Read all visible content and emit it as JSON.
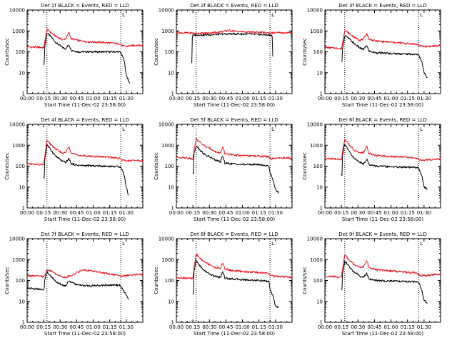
{
  "figure": {
    "background": "#ffffff"
  },
  "colors": {
    "events": "#000000",
    "lld": "#e8141b",
    "axis": "#000000"
  },
  "shared_axes": {
    "xlabel": "Start Time (11-Dec-02 23:58:00)",
    "ylabel": "Counts/sec",
    "xticks": [
      "00:00",
      "00:15",
      "00:30",
      "00:45",
      "01:00",
      "01:15",
      "01:30"
    ],
    "ytick_labels": [
      "1",
      "10",
      "100",
      "1000",
      "10000"
    ],
    "ylim": [
      1,
      10000
    ],
    "xlim_minutes": [
      0,
      105
    ],
    "yscale": "log"
  },
  "chart_data": [
    {
      "type": "line",
      "title": "Det 1f BLACK = Events, RED = LLD",
      "marker": "L",
      "vlines": [
        18,
        85
      ],
      "series": [
        {
          "name": "Events",
          "x": [
            15,
            15.5,
            16,
            18,
            22,
            26,
            32,
            35,
            38,
            40,
            46,
            55,
            70,
            84,
            85,
            88,
            90,
            93
          ],
          "y": [
            25,
            28,
            180,
            800,
            500,
            280,
            160,
            140,
            220,
            120,
            100,
            100,
            100,
            100,
            90,
            40,
            8,
            3
          ]
        },
        {
          "name": "LLD",
          "x": [
            0,
            10,
            15,
            16,
            18,
            22,
            26,
            32,
            35,
            38,
            40,
            46,
            55,
            70,
            84,
            86,
            90,
            93,
            100,
            105
          ],
          "y": [
            170,
            165,
            160,
            300,
            1200,
            800,
            550,
            380,
            420,
            800,
            420,
            350,
            300,
            280,
            240,
            200,
            180,
            190,
            210,
            200
          ]
        }
      ]
    },
    {
      "type": "line",
      "title": "Det 2f BLACK = Events, RED = LLD",
      "marker": "L",
      "vlines": [
        18,
        85
      ],
      "series": [
        {
          "name": "Events",
          "x": [
            14,
            14.5,
            15,
            20,
            30,
            40,
            50,
            60,
            70,
            80,
            85,
            87,
            87.5
          ],
          "y": [
            30,
            600,
            620,
            630,
            650,
            700,
            720,
            710,
            690,
            650,
            620,
            600,
            60
          ]
        },
        {
          "name": "LLD",
          "x": [
            0,
            10,
            15,
            20,
            30,
            40,
            48,
            55,
            65,
            75,
            85,
            95,
            105
          ],
          "y": [
            820,
            800,
            780,
            760,
            800,
            900,
            1050,
            950,
            880,
            850,
            800,
            820,
            810
          ]
        }
      ]
    },
    {
      "type": "line",
      "title": "Det 3f BLACK = Events, RED = LLD",
      "marker": "L",
      "vlines": [
        18,
        85
      ],
      "series": [
        {
          "name": "Events",
          "x": [
            15,
            15.5,
            16,
            18,
            22,
            26,
            32,
            35,
            38,
            40,
            46,
            55,
            70,
            84,
            85,
            88,
            90,
            93
          ],
          "y": [
            30,
            32,
            150,
            600,
            420,
            260,
            150,
            130,
            200,
            110,
            90,
            85,
            80,
            75,
            70,
            35,
            10,
            6
          ]
        },
        {
          "name": "LLD",
          "x": [
            0,
            10,
            15,
            16,
            18,
            22,
            26,
            32,
            35,
            38,
            40,
            46,
            55,
            70,
            84,
            86,
            90,
            100,
            105
          ],
          "y": [
            160,
            150,
            140,
            250,
            1100,
            750,
            520,
            360,
            400,
            750,
            400,
            330,
            300,
            260,
            230,
            190,
            180,
            190,
            200
          ]
        }
      ]
    },
    {
      "type": "line",
      "title": "Det 4f BLACK = Events, RED = LLD",
      "marker": "L",
      "vlines": [
        18,
        85
      ],
      "series": [
        {
          "name": "Events",
          "x": [
            15,
            15.5,
            16,
            18,
            22,
            26,
            32,
            35,
            38,
            40,
            46,
            55,
            70,
            84,
            85,
            88,
            90,
            92
          ],
          "y": [
            25,
            28,
            200,
            1100,
            550,
            300,
            170,
            150,
            230,
            130,
            110,
            105,
            100,
            95,
            90,
            40,
            10,
            4
          ]
        },
        {
          "name": "LLD",
          "x": [
            0,
            10,
            15,
            16,
            18,
            22,
            26,
            32,
            35,
            38,
            40,
            46,
            55,
            70,
            84,
            86,
            90,
            100,
            105
          ],
          "y": [
            130,
            120,
            115,
            300,
            1700,
            1000,
            650,
            420,
            450,
            900,
            430,
            330,
            300,
            280,
            240,
            200,
            180,
            190,
            170
          ]
        }
      ]
    },
    {
      "type": "line",
      "title": "Det 5f BLACK = Events, RED = LLD",
      "marker": "L",
      "vlines": [
        18,
        85
      ],
      "series": [
        {
          "name": "Events",
          "x": [
            15,
            15.5,
            16,
            18,
            22,
            26,
            32,
            35,
            40,
            42,
            44,
            50,
            60,
            75,
            84,
            85,
            88,
            90,
            93
          ],
          "y": [
            50,
            45,
            400,
            1000,
            550,
            350,
            250,
            200,
            160,
            300,
            140,
            130,
            120,
            120,
            100,
            50,
            20,
            8,
            5
          ]
        },
        {
          "name": "LLD",
          "x": [
            0,
            10,
            15,
            16,
            18,
            22,
            26,
            32,
            35,
            40,
            42,
            44,
            50,
            60,
            75,
            84,
            86,
            90,
            100,
            105
          ],
          "y": [
            270,
            250,
            220,
            600,
            2000,
            1300,
            900,
            650,
            500,
            420,
            800,
            400,
            350,
            320,
            300,
            280,
            220,
            230,
            250,
            240
          ]
        }
      ]
    },
    {
      "type": "line",
      "title": "Det 6f BLACK = Events, RED = LLD",
      "marker": "L",
      "vlines": [
        18,
        85
      ],
      "series": [
        {
          "name": "Events",
          "x": [
            15,
            15.5,
            16,
            18,
            22,
            26,
            32,
            35,
            38,
            40,
            46,
            55,
            70,
            84,
            85,
            88,
            90,
            93
          ],
          "y": [
            40,
            38,
            350,
            1200,
            500,
            250,
            150,
            130,
            220,
            120,
            100,
            95,
            90,
            85,
            80,
            35,
            10,
            8
          ]
        },
        {
          "name": "LLD",
          "x": [
            0,
            10,
            15,
            16,
            18,
            22,
            26,
            32,
            35,
            38,
            40,
            46,
            55,
            70,
            84,
            86,
            90,
            100,
            105
          ],
          "y": [
            230,
            220,
            200,
            500,
            2000,
            1100,
            600,
            420,
            450,
            900,
            420,
            330,
            300,
            280,
            240,
            200,
            200,
            210,
            230
          ]
        }
      ]
    },
    {
      "type": "line",
      "title": "Det 7f BLACK = Events, RED = LLD",
      "marker": "L",
      "vlines": [
        18,
        85
      ],
      "series": [
        {
          "name": "Events",
          "x": [
            0,
            15,
            15.5,
            16,
            18,
            22,
            26,
            32,
            35,
            38,
            40,
            46,
            55,
            70,
            84,
            85,
            88,
            90,
            92
          ],
          "y": [
            45,
            35,
            40,
            120,
            250,
            150,
            90,
            60,
            55,
            100,
            80,
            60,
            55,
            60,
            60,
            50,
            30,
            20,
            12
          ]
        },
        {
          "name": "LLD",
          "x": [
            0,
            10,
            15,
            16,
            18,
            22,
            26,
            32,
            35,
            40,
            46,
            50,
            55,
            65,
            75,
            84,
            86,
            90,
            100,
            105
          ],
          "y": [
            170,
            160,
            150,
            180,
            320,
            280,
            200,
            150,
            140,
            170,
            250,
            320,
            300,
            250,
            200,
            180,
            160,
            170,
            200,
            190
          ]
        }
      ]
    },
    {
      "type": "line",
      "title": "Det 8f BLACK = Events, RED = LLD",
      "marker": "L",
      "vlines": [
        18,
        85
      ],
      "series": [
        {
          "name": "Events",
          "x": [
            15,
            15.5,
            16,
            18,
            22,
            26,
            32,
            35,
            40,
            42,
            44,
            50,
            60,
            75,
            84,
            85,
            88,
            90,
            93
          ],
          "y": [
            20,
            25,
            280,
            900,
            450,
            280,
            180,
            160,
            140,
            280,
            130,
            120,
            110,
            100,
            90,
            40,
            15,
            6,
            5
          ]
        },
        {
          "name": "LLD",
          "x": [
            0,
            10,
            15,
            16,
            18,
            22,
            26,
            32,
            35,
            40,
            42,
            44,
            50,
            60,
            75,
            84,
            86,
            90,
            100,
            105
          ],
          "y": [
            140,
            130,
            125,
            400,
            1800,
            1100,
            750,
            520,
            420,
            380,
            700,
            360,
            300,
            270,
            240,
            220,
            170,
            160,
            150,
            140
          ]
        }
      ]
    },
    {
      "type": "line",
      "title": "Det 9f BLACK = Events, RED = LLD",
      "marker": "L",
      "vlines": [
        18,
        85
      ],
      "series": [
        {
          "name": "Events",
          "x": [
            15,
            15.5,
            16,
            18,
            22,
            26,
            32,
            35,
            38,
            40,
            46,
            55,
            70,
            84,
            85,
            88,
            90,
            93
          ],
          "y": [
            35,
            38,
            200,
            900,
            450,
            270,
            160,
            140,
            220,
            120,
            100,
            95,
            90,
            85,
            80,
            35,
            12,
            8
          ]
        },
        {
          "name": "LLD",
          "x": [
            0,
            10,
            15,
            16,
            18,
            22,
            26,
            32,
            35,
            38,
            40,
            46,
            55,
            70,
            84,
            86,
            90,
            100,
            105
          ],
          "y": [
            160,
            150,
            140,
            350,
            1700,
            950,
            600,
            420,
            450,
            900,
            420,
            330,
            300,
            260,
            230,
            180,
            170,
            190,
            200
          ]
        }
      ]
    }
  ]
}
